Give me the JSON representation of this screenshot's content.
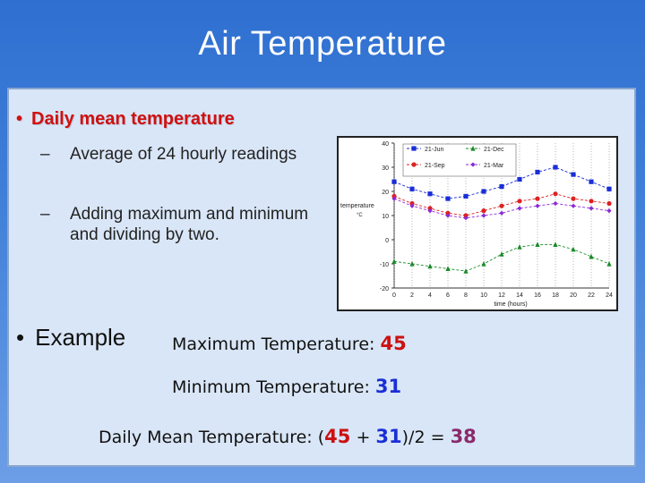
{
  "slide": {
    "title": "Air Temperature",
    "bullet1": "Daily mean temperature",
    "sub1": "Average of 24 hourly readings",
    "sub2": "Adding maximum and minimum and dividing by two.",
    "dash": "–",
    "bullet_dot": "•",
    "bullet2": "Example",
    "max_label": "Maximum Temperature:",
    "max_value": "45",
    "min_label": "Minimum Temperature:",
    "min_value": "31",
    "mean_label": "Daily Mean Temperature:",
    "mean_open": "(",
    "mean_plus": "+",
    "mean_close_div": ")/2 =",
    "mean_result": "38"
  },
  "colors": {
    "background": "#3f7fd8",
    "bullet1": "#cc1111",
    "max_value": "#cc1111",
    "min_value": "#1a2ed6",
    "mean_result": "#8a2a6a"
  },
  "chart_data": {
    "type": "line",
    "xlabel": "time (hours)",
    "ylabel": "temperature °C",
    "x": [
      0,
      2,
      4,
      6,
      8,
      10,
      12,
      14,
      16,
      18,
      20,
      22,
      24
    ],
    "x_ticks": [
      "0",
      "2",
      "4",
      "6",
      "8",
      "10",
      "12",
      "14",
      "16",
      "18",
      "20",
      "22",
      "24"
    ],
    "y_ticks": [
      "40",
      "30",
      "20",
      "10",
      "0",
      "-10",
      "-20"
    ],
    "ylim": [
      -20,
      40
    ],
    "xlim": [
      0,
      24
    ],
    "legend_position": "top",
    "series": [
      {
        "name": "21-Jun",
        "color": "#1a2ed6",
        "marker": "square",
        "values": [
          24,
          21,
          19,
          17,
          18,
          20,
          22,
          25,
          28,
          30,
          27,
          24,
          21
        ]
      },
      {
        "name": "21-Dec",
        "color": "#1a8a2a",
        "marker": "triangle",
        "values": [
          -9,
          -10,
          -11,
          -12,
          -13,
          -10,
          -6,
          -3,
          -2,
          -2,
          -4,
          -7,
          -10
        ]
      },
      {
        "name": "21-Sep",
        "color": "#dd2222",
        "marker": "circle",
        "values": [
          18,
          15,
          13,
          11,
          10,
          12,
          14,
          16,
          17,
          19,
          17,
          16,
          15
        ]
      },
      {
        "name": "21-Mar",
        "color": "#8a2ad6",
        "marker": "diamond",
        "values": [
          17,
          14,
          12,
          10,
          9,
          10,
          11,
          13,
          14,
          15,
          14,
          13,
          12
        ]
      }
    ]
  }
}
